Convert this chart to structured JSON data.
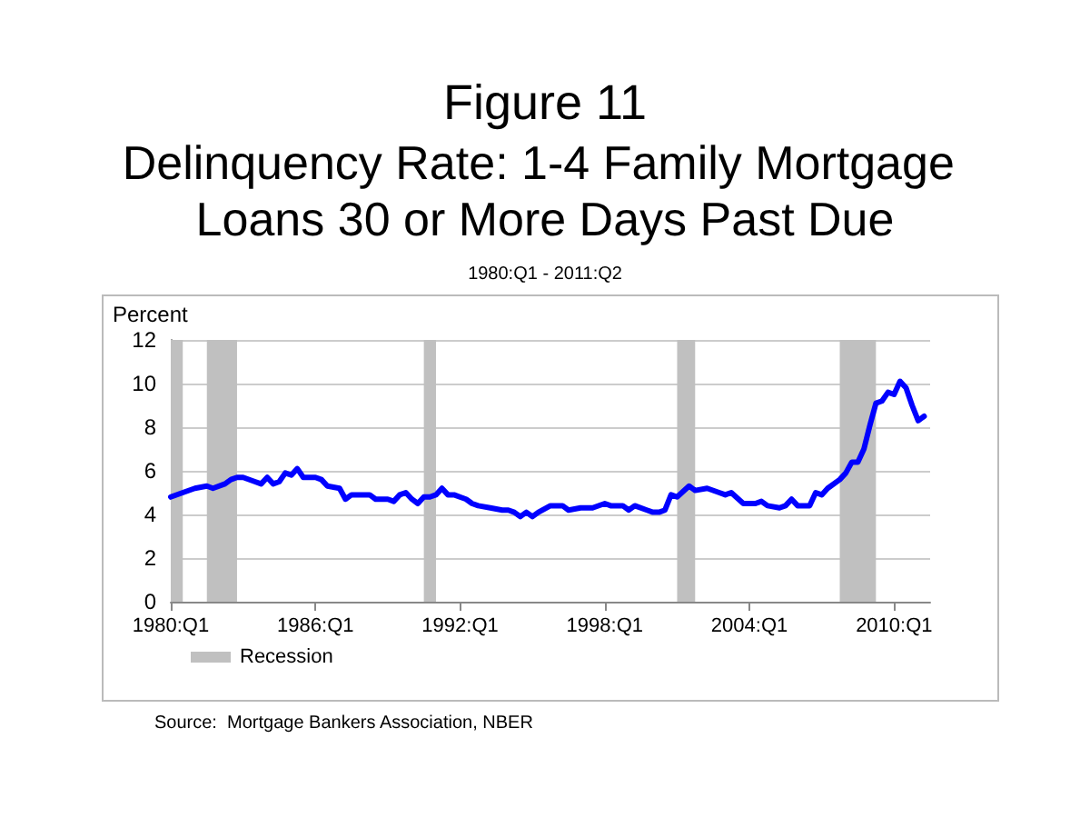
{
  "chart_data": {
    "type": "line",
    "title": "Figure 11",
    "subtitle": "Delinquency Rate: 1-4 Family Mortgage Loans 30 or More Days Past Due",
    "ylabel": "Percent",
    "annotations": [
      "1980:Q1 - 2011:Q2",
      "Source:  Mortgage Bankers Association, NBER"
    ],
    "x": [
      "1980-01",
      "1980-07",
      "1981-01",
      "1981-07",
      "1981-10",
      "1982-04",
      "1982-07",
      "1982-10",
      "1983-01",
      "1983-07",
      "1983-10",
      "1984-01",
      "1984-04",
      "1984-07",
      "1984-10",
      "1985-01",
      "1985-04",
      "1985-07",
      "1985-10",
      "1986-01",
      "1986-04",
      "1986-07",
      "1987-01",
      "1987-04",
      "1987-07",
      "1988-01",
      "1988-04",
      "1988-07",
      "1989-01",
      "1989-04",
      "1989-07",
      "1989-10",
      "1990-01",
      "1990-04",
      "1990-07",
      "1990-10",
      "1991-01",
      "1991-04",
      "1991-07",
      "1991-10",
      "1992-04",
      "1992-07",
      "1992-10",
      "1993-04",
      "1993-10",
      "1994-01",
      "1994-04",
      "1994-07",
      "1994-10",
      "1995-01",
      "1995-04",
      "1995-10",
      "1996-01",
      "1996-04",
      "1996-07",
      "1997-01",
      "1997-07",
      "1998-01",
      "1998-04",
      "1998-10",
      "1999-01",
      "1999-04",
      "1999-10",
      "2000-01",
      "2000-04",
      "2000-07",
      "2000-10",
      "2001-01",
      "2001-07",
      "2001-10",
      "2002-04",
      "2002-10",
      "2003-01",
      "2003-04",
      "2003-10",
      "2004-04",
      "2004-07",
      "2004-10",
      "2005-04",
      "2005-07",
      "2005-10",
      "2006-01",
      "2006-07",
      "2006-10",
      "2007-01",
      "2007-04",
      "2007-10",
      "2008-01",
      "2008-04",
      "2008-07",
      "2008-10",
      "2009-01",
      "2009-04",
      "2009-07",
      "2009-10",
      "2010-01",
      "2010-04",
      "2010-07",
      "2010-10",
      "2011-01",
      "2011-04"
    ],
    "series": [
      {
        "color": "#0000ff",
        "values": [
          4.8,
          5.0,
          5.2,
          5.3,
          5.2,
          5.4,
          5.6,
          5.7,
          5.7,
          5.5,
          5.4,
          5.7,
          5.4,
          5.5,
          5.9,
          5.8,
          6.1,
          5.7,
          5.7,
          5.7,
          5.6,
          5.3,
          5.2,
          4.7,
          4.9,
          4.9,
          4.9,
          4.7,
          4.7,
          4.6,
          4.9,
          5.0,
          4.7,
          4.5,
          4.8,
          4.8,
          4.9,
          5.2,
          4.9,
          4.9,
          4.7,
          4.5,
          4.4,
          4.3,
          4.2,
          4.2,
          4.1,
          3.9,
          4.1,
          3.9,
          4.1,
          4.4,
          4.4,
          4.4,
          4.2,
          4.3,
          4.3,
          4.5,
          4.4,
          4.4,
          4.2,
          4.4,
          4.2,
          4.1,
          4.1,
          4.2,
          4.9,
          4.8,
          5.3,
          5.1,
          5.2,
          5.0,
          4.9,
          5.0,
          4.5,
          4.5,
          4.6,
          4.4,
          4.3,
          4.4,
          4.7,
          4.4,
          4.4,
          5.0,
          4.9,
          5.2,
          5.6,
          5.9,
          6.4,
          6.4,
          7.0,
          8.1,
          9.1,
          9.2,
          9.6,
          9.5,
          10.1,
          9.8,
          9.0,
          8.3,
          8.5
        ]
      }
    ],
    "xlim": [
      "1980-01",
      "2011-07"
    ],
    "xticks": [
      {
        "value": "1980-01",
        "label": "1980:Q1"
      },
      {
        "value": "1986-01",
        "label": "1986:Q1"
      },
      {
        "value": "1992-01",
        "label": "1992:Q1"
      },
      {
        "value": "1998-01",
        "label": "1998:Q1"
      },
      {
        "value": "2004-01",
        "label": "2004:Q1"
      },
      {
        "value": "2010-01",
        "label": "2010:Q1"
      }
    ],
    "ylim": [
      0,
      12
    ],
    "yticks": [
      0,
      2,
      4,
      6,
      8,
      10,
      12
    ],
    "bands": [
      {
        "axis": "x",
        "from": "1980-01",
        "to": "1980-07",
        "label": "Recession",
        "color": "#c0c0c0"
      },
      {
        "axis": "x",
        "from": "1981-07",
        "to": "1982-10",
        "color": "#c0c0c0"
      },
      {
        "axis": "x",
        "from": "1990-07",
        "to": "1991-01",
        "color": "#c0c0c0"
      },
      {
        "axis": "x",
        "from": "2001-01",
        "to": "2001-10",
        "color": "#c0c0c0"
      },
      {
        "axis": "x",
        "from": "2007-10",
        "to": "2009-04",
        "color": "#c0c0c0"
      }
    ],
    "grid": "y",
    "legend": "bottom left",
    "marker": "none",
    "line_style": "solid"
  }
}
